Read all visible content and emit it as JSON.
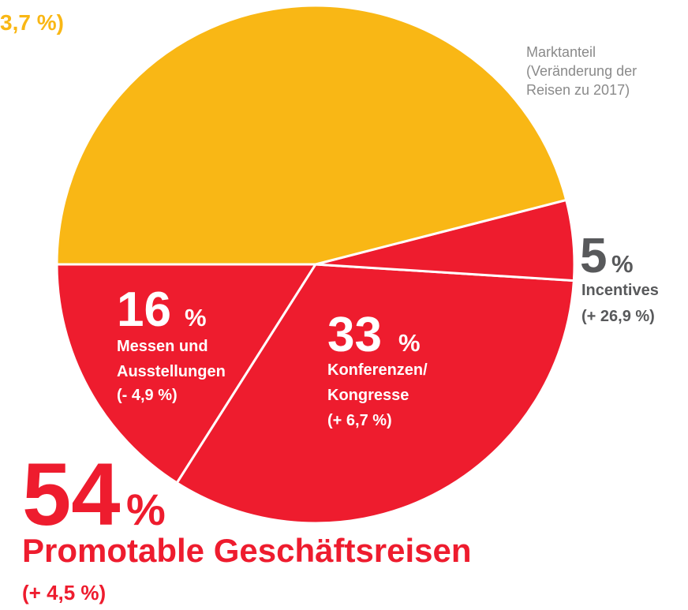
{
  "chart_data": {
    "type": "pie",
    "categories": [
      [
        "Messen und",
        "Ausstellungen"
      ],
      [
        "Konferenzen/",
        "Kongresse"
      ],
      [
        "Incentives"
      ],
      null
    ],
    "values": [
      16,
      33,
      5,
      46
    ],
    "changes": [
      "(- 4,9 %)",
      "(+ 6,7 %)",
      "(+ 26,9 %)",
      "3,7 %)"
    ],
    "colors": [
      "#ee1c2e",
      "#ee1c2e",
      "#ee1c2e",
      "#f9b715"
    ],
    "unit": "%",
    "note": [
      "Marktanteil",
      "(Veränderung der",
      "Reisen zu 2017)"
    ],
    "group": {
      "value": 54,
      "name": "Promotable Geschäftsreisen",
      "change": "(+ 4,5 %)"
    }
  }
}
